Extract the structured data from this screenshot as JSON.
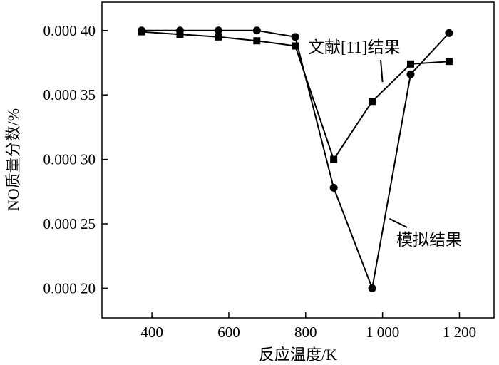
{
  "chart_data": {
    "type": "line",
    "xlabel": "反应温度/K",
    "ylabel": "NO质量分数/%",
    "xlim": [
      270,
      1290
    ],
    "ylim": [
      0.000177,
      0.000422
    ],
    "x_ticks": [
      {
        "value": 400,
        "label": "400"
      },
      {
        "value": 600,
        "label": "600"
      },
      {
        "value": 800,
        "label": "800"
      },
      {
        "value": 1000,
        "label": "1 000"
      },
      {
        "value": 1200,
        "label": "1 200"
      }
    ],
    "y_ticks": [
      {
        "value": 0.0002,
        "label": "0.000 20"
      },
      {
        "value": 0.00025,
        "label": "0.000 25"
      },
      {
        "value": 0.0003,
        "label": "0.000 30"
      },
      {
        "value": 0.00035,
        "label": "0.000 35"
      },
      {
        "value": 0.0004,
        "label": "0.000 40"
      }
    ],
    "grid": false,
    "series": [
      {
        "marker": "circle",
        "color": "#000000",
        "x": [
          373,
          473,
          573,
          673,
          773,
          873,
          973,
          1073,
          1173
        ],
        "y": [
          0.0004,
          0.0004,
          0.0004,
          0.0004,
          0.000395,
          0.000278,
          0.0002,
          0.000366,
          0.000398
        ]
      },
      {
        "marker": "square",
        "color": "#000000",
        "x": [
          373,
          473,
          573,
          673,
          773,
          873,
          973,
          1073,
          1173
        ],
        "y": [
          0.000399,
          0.000397,
          0.000395,
          0.000392,
          0.000388,
          0.0003,
          0.000345,
          0.000374,
          0.000376
        ]
      }
    ],
    "annotations": [
      {
        "text": "文献[11]结果",
        "target_series": 1,
        "target_point": [
          1000,
          0.00036
        ]
      },
      {
        "text": "模拟结果",
        "target_series": 0,
        "target_point": [
          1018,
          0.000254
        ]
      }
    ]
  }
}
